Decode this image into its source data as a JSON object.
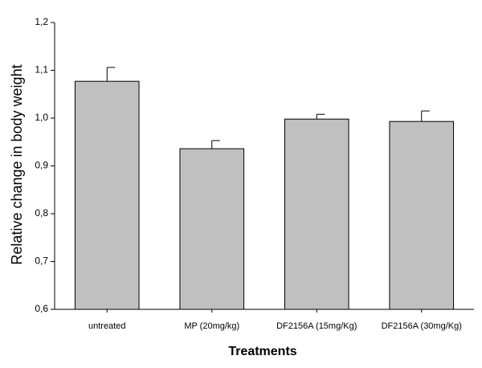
{
  "chart_data": {
    "type": "bar",
    "x_label": "Treatments",
    "y_label": "Relative change in body weight",
    "categories": [
      "untreated",
      "MP (20mg/kg)",
      "DF2156A (15mg/Kg)",
      "DF2156A (30mg/Kg)"
    ],
    "values": [
      1.077,
      0.936,
      0.998,
      0.993
    ],
    "errors": [
      0.029,
      0.017,
      0.01,
      0.022
    ],
    "color": "#c0c0c0",
    "ylim": [
      0.6,
      1.2
    ],
    "yticks": [
      {
        "value": 0.6,
        "label": "0,6"
      },
      {
        "value": 0.7,
        "label": "0,7"
      },
      {
        "value": 0.8,
        "label": "0,8"
      },
      {
        "value": 0.9,
        "label": "0,9"
      },
      {
        "value": 1.0,
        "label": "1,0"
      },
      {
        "value": 1.1,
        "label": "1,1"
      },
      {
        "value": 1.2,
        "label": "1,2"
      }
    ],
    "grid": false
  }
}
